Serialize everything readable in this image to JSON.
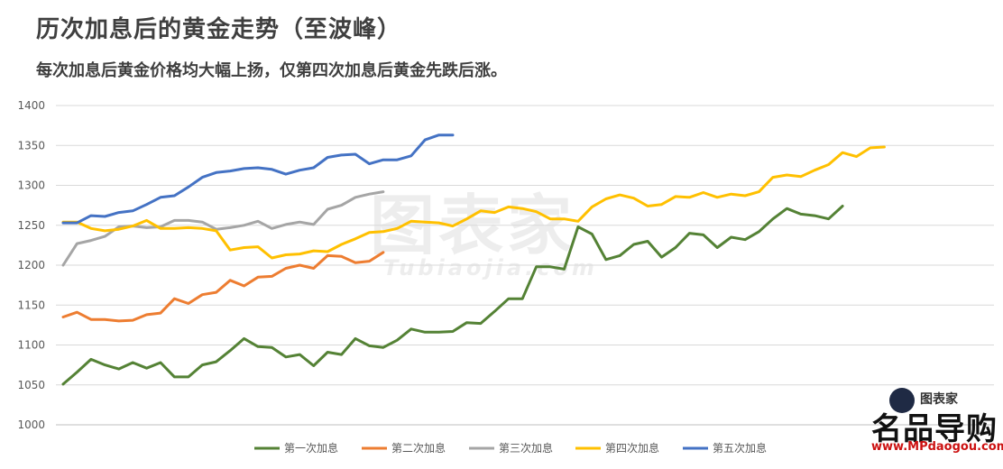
{
  "header": {
    "title": "历次加息后的黄金走势（至波峰）",
    "subtitle": "每次加息后黄金价格均大幅上扬，仅第四次加息后黄金先跌后涨。"
  },
  "watermark": {
    "cn": "图表家",
    "en": "Tubiaojia.com"
  },
  "logo": {
    "name": "名品导购",
    "url": "www.MPdaogou.com",
    "small": "图表家"
  },
  "chart_data": {
    "type": "line",
    "ylim": [
      1000,
      1400
    ],
    "yticks": [
      "1000",
      "1050",
      "1100",
      "1150",
      "1200",
      "1250",
      "1300",
      "1350",
      "1400"
    ],
    "grid": "horizontal",
    "legend": "bottom",
    "series": [
      {
        "name": "第一次加息",
        "color": "#548235",
        "values": [
          1051,
          1066,
          1082,
          1075,
          1070,
          1078,
          1071,
          1078,
          1060,
          1060,
          1075,
          1079,
          1093,
          1108,
          1098,
          1097,
          1085,
          1088,
          1074,
          1091,
          1088,
          1108,
          1099,
          1097,
          1106,
          1120,
          1116,
          1116,
          1117,
          1128,
          1127,
          1142,
          1158,
          1158,
          1198,
          1198,
          1195,
          1248,
          1239,
          1207,
          1212,
          1226,
          1230,
          1210,
          1222,
          1240,
          1238,
          1222,
          1235,
          1232,
          1242,
          1258,
          1271,
          1264,
          1262,
          1258,
          1274
        ]
      },
      {
        "name": "第二次加息",
        "color": "#ed7d31",
        "values": [
          1135,
          1141,
          1132,
          1132,
          1130,
          1131,
          1138,
          1140,
          1158,
          1152,
          1163,
          1166,
          1181,
          1174,
          1185,
          1186,
          1196,
          1200,
          1196,
          1212,
          1211,
          1203,
          1205,
          1216
        ]
      },
      {
        "name": "第三次加息",
        "color": "#a5a5a5",
        "values": [
          1200,
          1227,
          1231,
          1236,
          1248,
          1249,
          1247,
          1248,
          1256,
          1256,
          1254,
          1245,
          1247,
          1250,
          1255,
          1246,
          1251,
          1254,
          1251,
          1270,
          1275,
          1285,
          1289,
          1292
        ]
      },
      {
        "name": "第四次加息",
        "color": "#ffc000",
        "values": [
          1254,
          1254,
          1246,
          1243,
          1245,
          1249,
          1256,
          1246,
          1246,
          1247,
          1246,
          1243,
          1219,
          1222,
          1223,
          1209,
          1213,
          1214,
          1218,
          1217,
          1226,
          1233,
          1241,
          1242,
          1246,
          1255,
          1254,
          1253,
          1249,
          1258,
          1268,
          1266,
          1273,
          1271,
          1267,
          1258,
          1258,
          1255,
          1273,
          1283,
          1288,
          1284,
          1274,
          1276,
          1286,
          1285,
          1291,
          1285,
          1289,
          1287,
          1292,
          1310,
          1313,
          1311,
          1319,
          1326,
          1341,
          1336,
          1347,
          1348
        ]
      },
      {
        "name": "第五次加息",
        "color": "#4472c4",
        "values": [
          1253,
          1253,
          1262,
          1261,
          1266,
          1268,
          1276,
          1285,
          1287,
          1298,
          1310,
          1316,
          1318,
          1321,
          1322,
          1320,
          1314,
          1319,
          1322,
          1335,
          1338,
          1339,
          1327,
          1332,
          1332,
          1337,
          1357,
          1363,
          1363
        ]
      }
    ]
  }
}
